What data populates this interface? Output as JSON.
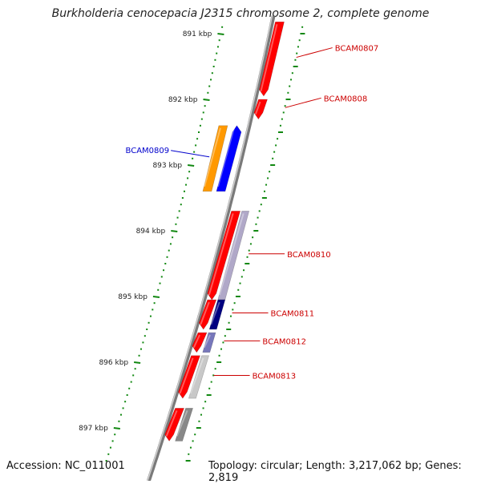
{
  "title": "Burkholderia cenocepacia J2315 chromosome 2, complete genome",
  "footer": {
    "accession": "Accession: NC_011001",
    "topology": "Topology: circular; Length: 3,217,062 bp; Genes: 2,819"
  },
  "ticks": [
    {
      "label": "891 kbp",
      "pos": 891
    },
    {
      "label": "892 kbp",
      "pos": 892
    },
    {
      "label": "893 kbp",
      "pos": 893
    },
    {
      "label": "894 kbp",
      "pos": 894
    },
    {
      "label": "895 kbp",
      "pos": 895
    },
    {
      "label": "896 kbp",
      "pos": 896
    },
    {
      "label": "897 kbp",
      "pos": 897
    }
  ],
  "genes": [
    {
      "label": "BCAM0807",
      "strand": "+",
      "start": 890.82,
      "end": 891.95,
      "color": "#ff0000",
      "label_color": "#cc0000",
      "callout": true
    },
    {
      "label": "BCAM0808",
      "strand": "+",
      "start": 892.0,
      "end": 892.3,
      "color": "#ff0000",
      "label_color": "#cc0000",
      "callout": true
    },
    {
      "label": "BCAM0809",
      "strand": "-",
      "start": 892.4,
      "end": 893.4,
      "color": "#0000ff",
      "label_color": "#0000cc",
      "callout": true
    },
    {
      "label": "",
      "strand": "-",
      "start": 892.4,
      "end": 893.4,
      "color": "#ff9900",
      "track": "outer"
    },
    {
      "label": "",
      "strand": "+",
      "start": 893.7,
      "end": 895.05,
      "color": "#ff0000"
    },
    {
      "label": "BCAM0810",
      "strand": "+",
      "start": 893.7,
      "end": 895.05,
      "color": "#b0a8c8",
      "track": "inner",
      "label_color": "#cc0000",
      "callout": true
    },
    {
      "label": "",
      "strand": "+",
      "start": 895.05,
      "end": 895.5,
      "color": "#ff0000"
    },
    {
      "label": "BCAM0811",
      "strand": "+",
      "start": 895.05,
      "end": 895.5,
      "color": "#000080",
      "track": "inner",
      "label_color": "#cc0000",
      "callout": true
    },
    {
      "label": "",
      "strand": "+",
      "start": 895.55,
      "end": 895.85,
      "color": "#ff0000"
    },
    {
      "label": "BCAM0812",
      "strand": "+",
      "start": 895.55,
      "end": 895.85,
      "color": "#7777bb",
      "track": "inner",
      "label_color": "#cc0000",
      "callout": true
    },
    {
      "label": "",
      "strand": "+",
      "start": 895.9,
      "end": 896.55,
      "color": "#ff0000"
    },
    {
      "label": "BCAM0813",
      "strand": "+",
      "start": 895.9,
      "end": 896.55,
      "color": "#c8c8c8",
      "track": "inner",
      "label_color": "#cc0000",
      "callout": true
    },
    {
      "label": "",
      "strand": "+",
      "start": 896.7,
      "end": 897.2,
      "color": "#ff0000"
    },
    {
      "label": "",
      "strand": "+",
      "start": 896.7,
      "end": 897.2,
      "color": "#888888",
      "track": "inner"
    }
  ]
}
